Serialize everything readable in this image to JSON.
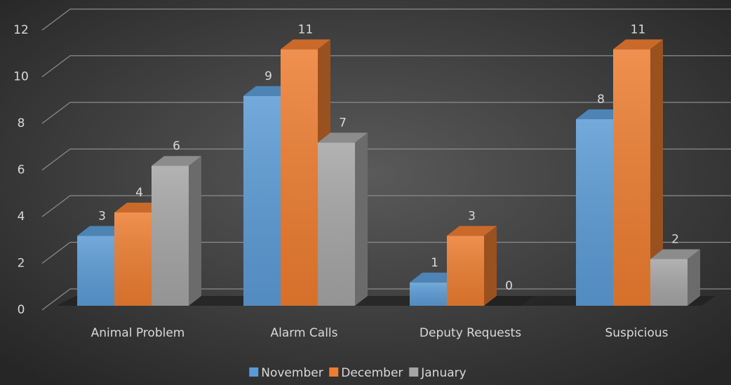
{
  "chart_data": {
    "type": "bar3d",
    "categories": [
      "Animal Problem",
      "Alarm Calls",
      "Deputy Requests",
      "Suspicious"
    ],
    "series": [
      {
        "name": "November",
        "color": "#5b9bd5",
        "values": [
          3,
          9,
          1,
          8
        ]
      },
      {
        "name": "December",
        "color": "#ed7d31",
        "values": [
          4,
          11,
          3,
          11
        ]
      },
      {
        "name": "January",
        "color": "#a5a5a5",
        "values": [
          6,
          7,
          0,
          2
        ]
      }
    ],
    "ylim": [
      0,
      12
    ],
    "yticks": [
      0,
      2,
      4,
      6,
      8,
      10,
      12
    ],
    "grid": true,
    "legend": "bottom"
  }
}
